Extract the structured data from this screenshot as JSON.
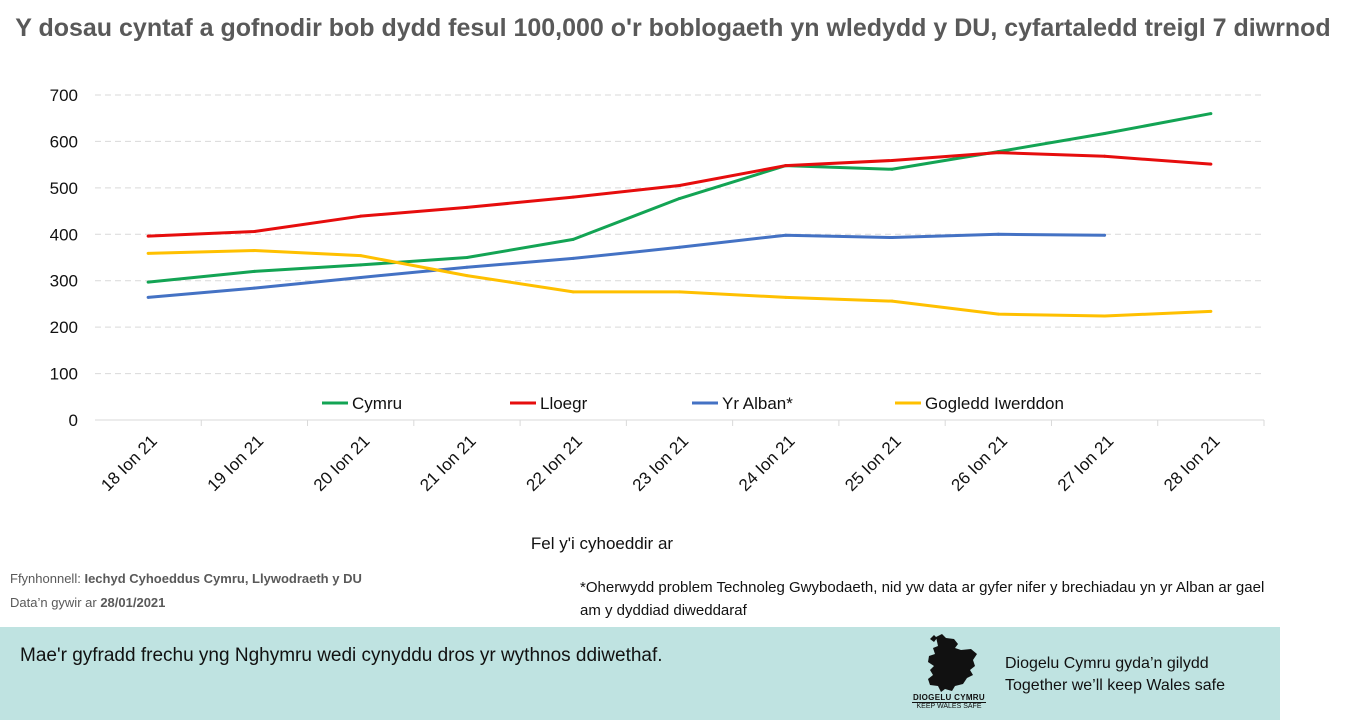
{
  "chart_data": {
    "type": "line",
    "title": "Y dosau cyntaf a gofnodir bob dydd fesul 100,000 o'r boblogaeth yn wledydd y DU, cyfartaledd treigl 7 diwrnod",
    "xlabel": "Fel y'i cyhoeddir ar",
    "ylabel": "",
    "ylim": [
      0,
      700
    ],
    "yticks": [
      0,
      100,
      200,
      300,
      400,
      500,
      600,
      700
    ],
    "grid": true,
    "legend_position": "bottom-inside",
    "categories": [
      "18 Ion 21",
      "19 Ion 21",
      "20 Ion 21",
      "21 Ion 21",
      "22 Ion 21",
      "23 Ion 21",
      "24 Ion 21",
      "25 Ion 21",
      "26 Ion 21",
      "27 Ion 21",
      "28 Ion 21"
    ],
    "series": [
      {
        "name": "Cymru",
        "color": "#13a454",
        "values": [
          297,
          320,
          334,
          350,
          389,
          477,
          548,
          540,
          578,
          617,
          660
        ]
      },
      {
        "name": "Lloegr",
        "color": "#e60d0d",
        "values": [
          396,
          406,
          439,
          458,
          480,
          505,
          548,
          559,
          576,
          568,
          551
        ]
      },
      {
        "name": "Yr Alban*",
        "color": "#4472c4",
        "values": [
          264,
          284,
          307,
          329,
          348,
          372,
          398,
          393,
          400,
          398,
          null
        ]
      },
      {
        "name": "Gogledd Iwerddon",
        "color": "#ffc000",
        "values": [
          359,
          365,
          354,
          311,
          276,
          276,
          264,
          256,
          228,
          224,
          234
        ]
      }
    ]
  },
  "source": {
    "label": "Ffynhonnell:",
    "value": "Iechyd Cyhoeddus Cymru, Llywodraeth y DU"
  },
  "accuracy": {
    "label": "Data’n gywir ar",
    "value": "28/01/2021"
  },
  "footnote": "*Oherwydd problem Technoleg Gwybodaeth, nid yw data ar gyfer nifer y brechiadau yn yr Alban ar gael am y dyddiad diweddaraf",
  "banner": {
    "message": "Mae'r gyfradd frechu yng Nghymru  wedi cynyddu dros yr wythnos ddiwethaf.",
    "logo_top": "DIOGELU CYMRU",
    "logo_bottom": "KEEP WALES SAFE",
    "slogan_cy": "Diogelu Cymru gyda’n gilydd",
    "slogan_en": "Together we’ll keep Wales safe",
    "background": "#bfe3e1"
  }
}
